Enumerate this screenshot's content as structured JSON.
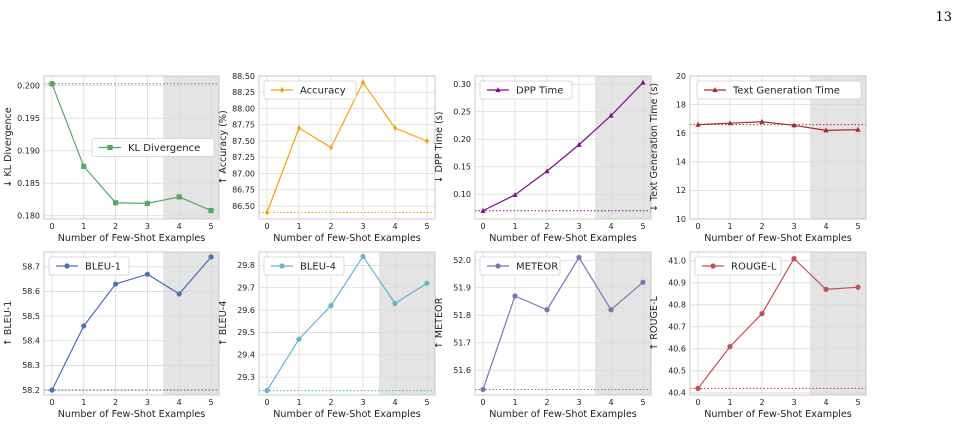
{
  "page": {
    "number": "13"
  },
  "chart_data": [
    {
      "type": "line",
      "x": [
        0,
        1,
        2,
        3,
        4,
        5
      ],
      "xlabel": "Number of Few-Shot Examples",
      "ylabel": "↓ KL Divergence",
      "ylim": [
        0.1795,
        0.2015
      ],
      "yticks": [
        0.18,
        0.185,
        0.19,
        0.195,
        0.2
      ],
      "tick_format": "3",
      "grid": true,
      "legend_position": "center-right",
      "series": [
        {
          "name": "KL Divergence",
          "values": [
            0.2003,
            0.1876,
            0.182,
            0.1819,
            0.1829,
            0.1808
          ],
          "color": "#55a868",
          "marker": "square"
        }
      ],
      "baseline": 0.2003,
      "shaded_from": 3.5
    },
    {
      "type": "line",
      "x": [
        0,
        1,
        2,
        3,
        4,
        5
      ],
      "xlabel": "Number of Few-Shot Examples",
      "ylabel": "↑ Accuracy (%)",
      "ylim": [
        86.3,
        88.5
      ],
      "yticks": [
        86.5,
        86.75,
        87.0,
        87.25,
        87.5,
        87.75,
        88.0,
        88.25,
        88.5
      ],
      "tick_format": "2",
      "grid": true,
      "legend_position": "top-left",
      "series": [
        {
          "name": "Accuracy",
          "values": [
            86.4,
            87.7,
            87.4,
            88.4,
            87.7,
            87.5
          ],
          "color": "#f5a30a",
          "marker": "diamond"
        }
      ],
      "baseline": 86.4,
      "shaded_from": null
    },
    {
      "type": "line",
      "x": [
        0,
        1,
        2,
        3,
        4,
        5
      ],
      "xlabel": "Number of Few-Shot Examples",
      "ylabel": "↓ DPP Time (s)",
      "ylim": [
        0.055,
        0.315
      ],
      "yticks": [
        0.1,
        0.15,
        0.2,
        0.25,
        0.3
      ],
      "tick_format": "2",
      "grid": true,
      "legend_position": "top-left",
      "series": [
        {
          "name": "DPP Time",
          "values": [
            0.07,
            0.099,
            0.142,
            0.19,
            0.243,
            0.303
          ],
          "color": "#7b0f85",
          "marker": "triangle"
        }
      ],
      "baseline": 0.07,
      "shaded_from": 3.5
    },
    {
      "type": "line",
      "x": [
        0,
        1,
        2,
        3,
        4,
        5
      ],
      "xlabel": "Number of Few-Shot Examples",
      "ylabel": "↓ Text Generation Time (s)",
      "ylim": [
        10,
        20
      ],
      "yticks": [
        10,
        12,
        14,
        16,
        18,
        20
      ],
      "tick_format": "0",
      "grid": true,
      "legend_position": "top-right",
      "series": [
        {
          "name": "Text Generation Time",
          "values": [
            16.6,
            16.7,
            16.8,
            16.55,
            16.2,
            16.25
          ],
          "color": "#a52a2a",
          "marker": "triangle"
        }
      ],
      "baseline": 16.6,
      "shaded_from": 3.5
    },
    {
      "type": "line",
      "x": [
        0,
        1,
        2,
        3,
        4,
        5
      ],
      "xlabel": "Number of Few-Shot Examples",
      "ylabel": "↑ BLEU-1",
      "ylim": [
        58.18,
        58.76
      ],
      "yticks": [
        58.2,
        58.3,
        58.4,
        58.5,
        58.6,
        58.7
      ],
      "tick_format": "1",
      "grid": true,
      "legend_position": "top-left",
      "series": [
        {
          "name": "BLEU-1",
          "values": [
            58.2,
            58.46,
            58.63,
            58.67,
            58.59,
            58.74
          ],
          "color": "#4c72b0",
          "marker": "circle"
        }
      ],
      "baseline": 58.2,
      "shaded_from": 3.5
    },
    {
      "type": "line",
      "x": [
        0,
        1,
        2,
        3,
        4,
        5
      ],
      "xlabel": "Number of Few-Shot Examples",
      "ylabel": "↑ BLEU-4",
      "ylim": [
        29.22,
        29.86
      ],
      "yticks": [
        29.3,
        29.4,
        29.5,
        29.6,
        29.7,
        29.8
      ],
      "tick_format": "1",
      "grid": true,
      "legend_position": "top-left",
      "series": [
        {
          "name": "BLEU-4",
          "values": [
            29.24,
            29.47,
            29.62,
            29.84,
            29.63,
            29.72
          ],
          "color": "#64b5cd",
          "marker": "circle"
        }
      ],
      "baseline": 29.24,
      "shaded_from": 3.5
    },
    {
      "type": "line",
      "x": [
        0,
        1,
        2,
        3,
        4,
        5
      ],
      "xlabel": "Number of Few-Shot Examples",
      "ylabel": "↑ METEOR",
      "ylim": [
        51.51,
        52.03
      ],
      "yticks": [
        51.6,
        51.7,
        51.8,
        51.9,
        52.0
      ],
      "tick_format": "1",
      "grid": true,
      "legend_position": "top-left",
      "series": [
        {
          "name": "METEOR",
          "values": [
            51.53,
            51.87,
            51.82,
            52.01,
            51.82,
            51.92
          ],
          "color": "#8172b3",
          "marker": "circle"
        }
      ],
      "baseline": 51.53,
      "shaded_from": 3.5
    },
    {
      "type": "line",
      "x": [
        0,
        1,
        2,
        3,
        4,
        5
      ],
      "xlabel": "Number of Few-Shot Examples",
      "ylabel": "↑ ROUGE-L",
      "ylim": [
        40.39,
        41.04
      ],
      "yticks": [
        40.4,
        40.5,
        40.6,
        40.7,
        40.8,
        40.9,
        41.0
      ],
      "tick_format": "1",
      "grid": true,
      "legend_position": "top-left",
      "series": [
        {
          "name": "ROUGE-L",
          "values": [
            40.42,
            40.61,
            40.76,
            41.01,
            40.87,
            40.88
          ],
          "color": "#c44e52",
          "marker": "circle"
        }
      ],
      "baseline": 40.42,
      "shaded_from": 3.5
    }
  ]
}
